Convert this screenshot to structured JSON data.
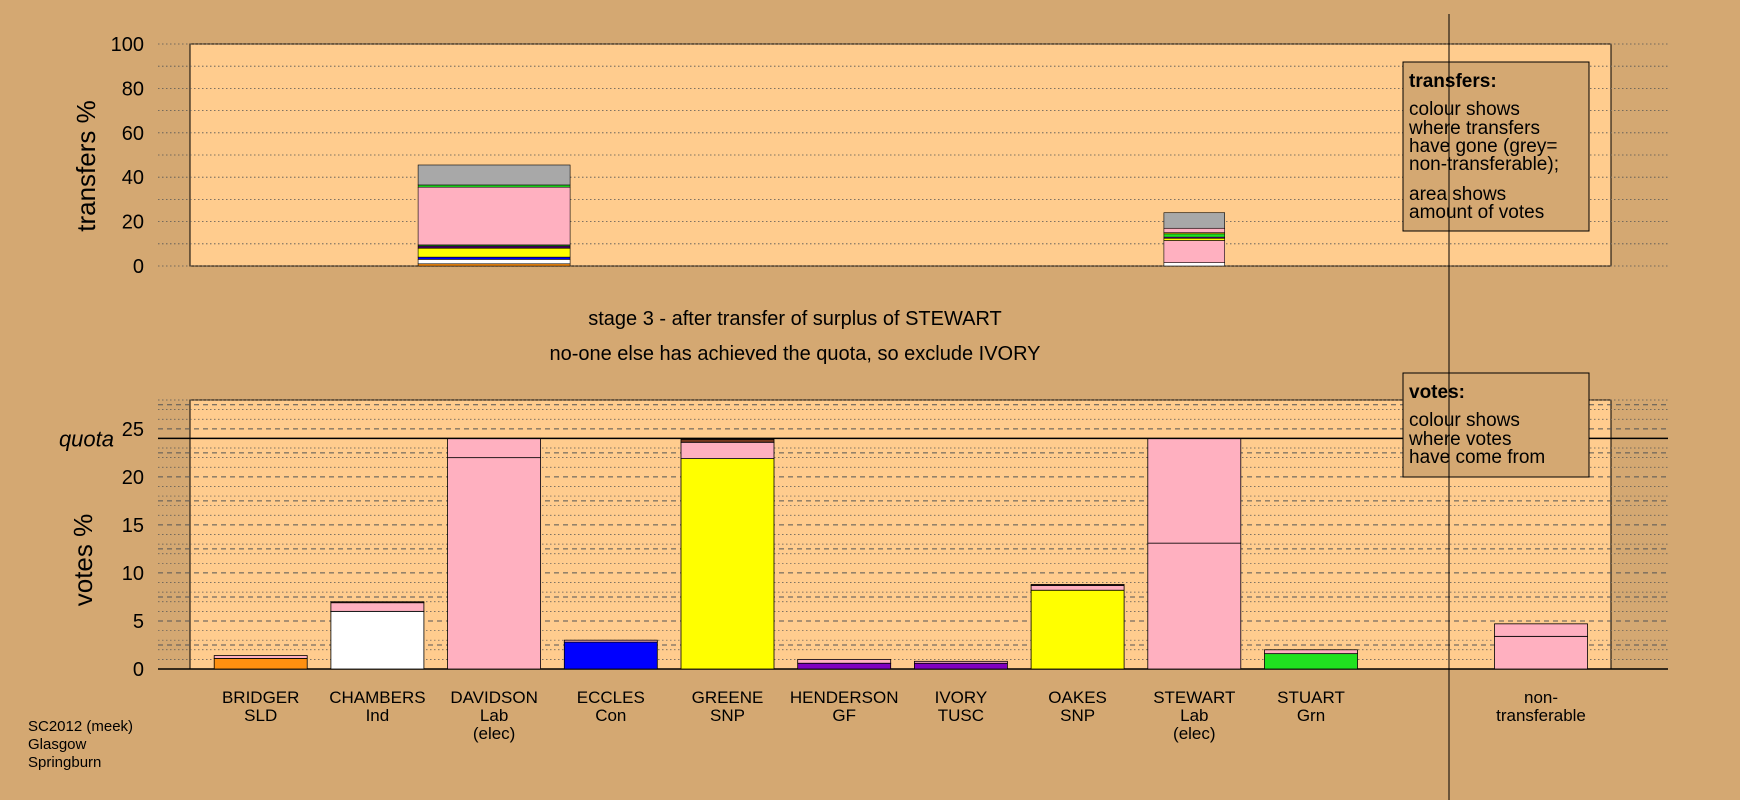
{
  "colors": {
    "background": "#D4A872",
    "plot_bg": "#FFCC8E",
    "SLD": "#FF9010",
    "Ind": "#FFFFFF",
    "Lab": "#FFB0C0",
    "Con": "#0000FF",
    "SNP": "#FFFF00",
    "GF": "#8000C0",
    "TUSC": "#8000C0",
    "Grn": "#20E020",
    "nontransferable": "#A8A8A8",
    "dark": "#7A3A20"
  },
  "messages": {
    "stage": "stage 3 - after transfer of surplus of STEWART",
    "action": "no-one else has achieved the quota, so exclude IVORY"
  },
  "footer": [
    "SC2012 (meek)",
    "Glasgow",
    "Springburn"
  ],
  "legend_transfers": {
    "title": "transfers:",
    "lines": [
      "colour shows",
      "where transfers",
      "have gone (grey=",
      "non-transferable);",
      "area shows",
      "amount of votes"
    ]
  },
  "legend_votes": {
    "title": "votes:",
    "lines": [
      "colour shows",
      "where votes",
      "have come from"
    ]
  },
  "chart_data": [
    {
      "type": "bar",
      "ylabel": "transfers %",
      "ylim": [
        0,
        100
      ],
      "yticks": [
        0,
        20,
        40,
        60,
        80,
        100
      ],
      "grid": true,
      "bars": [
        {
          "category": "DAVIDSON",
          "width_percent": 100,
          "segments": [
            {
              "party": "SLD",
              "value": 1
            },
            {
              "party": "Ind",
              "value": 2
            },
            {
              "party": "Con",
              "value": 1
            },
            {
              "party": "SNP",
              "value": 4
            },
            {
              "party": "GF",
              "value": 0.5
            },
            {
              "party": "TUSC",
              "value": 0.5
            },
            {
              "party": "Grn",
              "value": 0.5
            },
            {
              "party": "Lab",
              "value": 26
            },
            {
              "party": "Grn",
              "value": 1
            },
            {
              "party": "nontransferable",
              "value": 9
            }
          ]
        },
        {
          "category": "STEWART",
          "width_percent": 40,
          "segments": [
            {
              "party": "Ind",
              "value": 1.5
            },
            {
              "party": "Lab",
              "value": 10
            },
            {
              "party": "SNP",
              "value": 1
            },
            {
              "party": "GF",
              "value": 0.5
            },
            {
              "party": "Grn",
              "value": 1.5
            },
            {
              "party": "SNP",
              "value": 0.5
            },
            {
              "party": "Lab",
              "value": 2
            },
            {
              "party": "nontransferable",
              "value": 7
            }
          ]
        }
      ]
    },
    {
      "type": "bar",
      "ylabel": "votes %",
      "ylim": [
        0,
        28
      ],
      "yticks": [
        0,
        5,
        10,
        15,
        20,
        25
      ],
      "quota": 24,
      "quota_label": "quota",
      "grid": true,
      "categories": [
        {
          "name": "BRIDGER",
          "party": "SLD",
          "segments": [
            {
              "party": "SLD",
              "value": 1.1
            },
            {
              "party": "Lab",
              "value": 0.3
            }
          ]
        },
        {
          "name": "CHAMBERS",
          "party": "Ind",
          "segments": [
            {
              "party": "Ind",
              "value": 6.0
            },
            {
              "party": "Lab",
              "value": 0.9
            },
            {
              "party": "dark",
              "value": 0.1
            }
          ]
        },
        {
          "name": "DAVIDSON",
          "party": "Lab",
          "elected": "(elec)",
          "segments": [
            {
              "party": "Lab",
              "value": 22.0
            },
            {
              "party": "Lab",
              "value": 2.0
            }
          ]
        },
        {
          "name": "ECCLES",
          "party": "Con",
          "segments": [
            {
              "party": "Con",
              "value": 2.8
            },
            {
              "party": "Lab",
              "value": 0.2
            }
          ]
        },
        {
          "name": "GREENE",
          "party": "SNP",
          "segments": [
            {
              "party": "SNP",
              "value": 21.9
            },
            {
              "party": "Lab",
              "value": 1.7
            },
            {
              "party": "dark",
              "value": 0.3
            }
          ]
        },
        {
          "name": "HENDERSON",
          "party": "GF",
          "segments": [
            {
              "party": "GF",
              "value": 0.6
            },
            {
              "party": "Lab",
              "value": 0.4
            }
          ]
        },
        {
          "name": "IVORY",
          "party": "TUSC",
          "segments": [
            {
              "party": "TUSC",
              "value": 0.6
            },
            {
              "party": "Lab",
              "value": 0.2
            }
          ]
        },
        {
          "name": "OAKES",
          "party": "SNP",
          "segments": [
            {
              "party": "SNP",
              "value": 8.2
            },
            {
              "party": "Lab",
              "value": 0.5
            },
            {
              "party": "dark",
              "value": 0.1
            }
          ]
        },
        {
          "name": "STEWART",
          "party": "Lab",
          "elected": "(elec)",
          "segments": [
            {
              "party": "Lab",
              "value": 13.1
            },
            {
              "party": "Lab",
              "value": 10.9
            }
          ]
        },
        {
          "name": "STUART",
          "party": "Grn",
          "segments": [
            {
              "party": "Grn",
              "value": 1.6
            },
            {
              "party": "Lab",
              "value": 0.4
            }
          ]
        }
      ],
      "nontransferable": {
        "label_lines": [
          "non-",
          "transferable"
        ],
        "segments": [
          {
            "party": "Lab",
            "value": 3.4
          },
          {
            "party": "Lab",
            "value": 1.3
          }
        ]
      }
    }
  ]
}
